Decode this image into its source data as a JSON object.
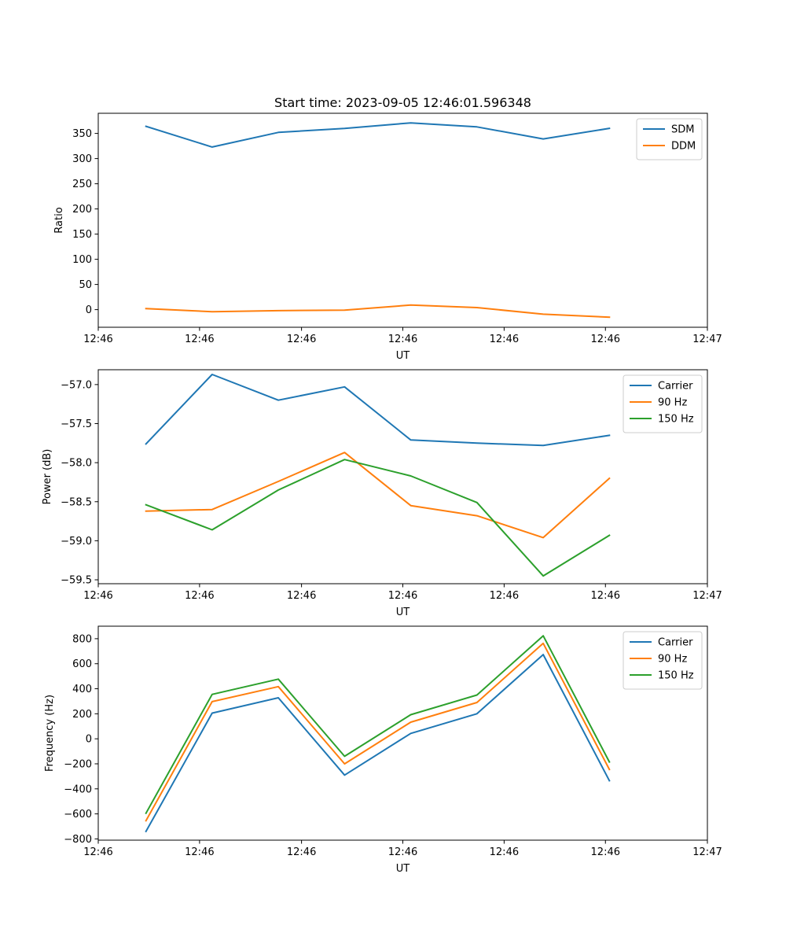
{
  "chart_data": [
    {
      "type": "line",
      "title": "Start time: 2023-09-05 12:46:01.596348",
      "xlabel": "UT",
      "ylabel": "Ratio",
      "x": [
        0,
        1,
        2,
        3,
        4,
        5,
        6,
        7
      ],
      "xlim": [
        -0.72,
        8.48
      ],
      "ylim": [
        -35,
        390
      ],
      "xticks": [
        -0.72,
        0.81,
        2.35,
        3.88,
        5.41,
        6.94,
        8.48
      ],
      "xtick_labels": [
        "12:46",
        "12:46",
        "12:46",
        "12:46",
        "12:46",
        "12:46",
        "12:47"
      ],
      "yticks": [
        0,
        50,
        100,
        150,
        200,
        250,
        300,
        350
      ],
      "ytick_labels": [
        "0",
        "50",
        "100",
        "150",
        "200",
        "250",
        "300",
        "350"
      ],
      "legend": "top-right",
      "series": [
        {
          "name": "SDM",
          "color": "#1f77b4",
          "values": [
            364,
            323,
            352,
            360,
            371,
            363,
            339,
            360
          ]
        },
        {
          "name": "DDM",
          "color": "#ff7f0e",
          "values": [
            2,
            -4,
            -2,
            -1,
            9,
            4,
            -9,
            -15
          ]
        }
      ]
    },
    {
      "type": "line",
      "title": "",
      "xlabel": "UT",
      "ylabel": "Power (dB)",
      "x": [
        0,
        1,
        2,
        3,
        4,
        5,
        6,
        7
      ],
      "xlim": [
        -0.72,
        8.48
      ],
      "ylim": [
        -59.55,
        -56.81
      ],
      "xticks": [
        -0.72,
        0.81,
        2.35,
        3.88,
        5.41,
        6.94,
        8.48
      ],
      "xtick_labels": [
        "12:46",
        "12:46",
        "12:46",
        "12:46",
        "12:46",
        "12:46",
        "12:47"
      ],
      "yticks": [
        -59.5,
        -59.0,
        -58.5,
        -58.0,
        -57.5,
        -57.0
      ],
      "ytick_labels": [
        "−59.5",
        "−59.0",
        "−58.5",
        "−58.0",
        "−57.5",
        "−57.0"
      ],
      "legend": "top-right",
      "series": [
        {
          "name": "Carrier",
          "color": "#1f77b4",
          "values": [
            -57.76,
            -56.87,
            -57.2,
            -57.03,
            -57.71,
            -57.75,
            -57.78,
            -57.65
          ]
        },
        {
          "name": "90 Hz",
          "color": "#ff7f0e",
          "values": [
            -58.62,
            -58.6,
            -58.24,
            -57.87,
            -58.55,
            -58.68,
            -58.96,
            -58.2
          ]
        },
        {
          "name": "150 Hz",
          "color": "#2ca02c",
          "values": [
            -58.54,
            -58.86,
            -58.35,
            -57.96,
            -58.17,
            -58.51,
            -59.45,
            -58.93
          ]
        }
      ]
    },
    {
      "type": "line",
      "title": "",
      "xlabel": "UT",
      "ylabel": "Frequency (Hz)",
      "x": [
        0,
        1,
        2,
        3,
        4,
        5,
        6,
        7
      ],
      "xlim": [
        -0.72,
        8.48
      ],
      "ylim": [
        -810,
        900
      ],
      "xticks": [
        -0.72,
        0.81,
        2.35,
        3.88,
        5.41,
        6.94,
        8.48
      ],
      "xtick_labels": [
        "12:46",
        "12:46",
        "12:46",
        "12:46",
        "12:46",
        "12:46",
        "12:47"
      ],
      "yticks": [
        -800,
        -600,
        -400,
        -200,
        0,
        200,
        400,
        600,
        800
      ],
      "ytick_labels": [
        "−800",
        "−600",
        "−400",
        "−200",
        "0",
        "200",
        "400",
        "600",
        "800"
      ],
      "legend": "top-right",
      "series": [
        {
          "name": "Carrier",
          "color": "#1f77b4",
          "values": [
            -740,
            205,
            328,
            -290,
            43,
            200,
            673,
            -335
          ]
        },
        {
          "name": "90 Hz",
          "color": "#ff7f0e",
          "values": [
            -655,
            297,
            417,
            -200,
            133,
            290,
            763,
            -245
          ]
        },
        {
          "name": "150 Hz",
          "color": "#2ca02c",
          "values": [
            -595,
            355,
            477,
            -140,
            193,
            350,
            823,
            -185
          ]
        }
      ]
    }
  ]
}
